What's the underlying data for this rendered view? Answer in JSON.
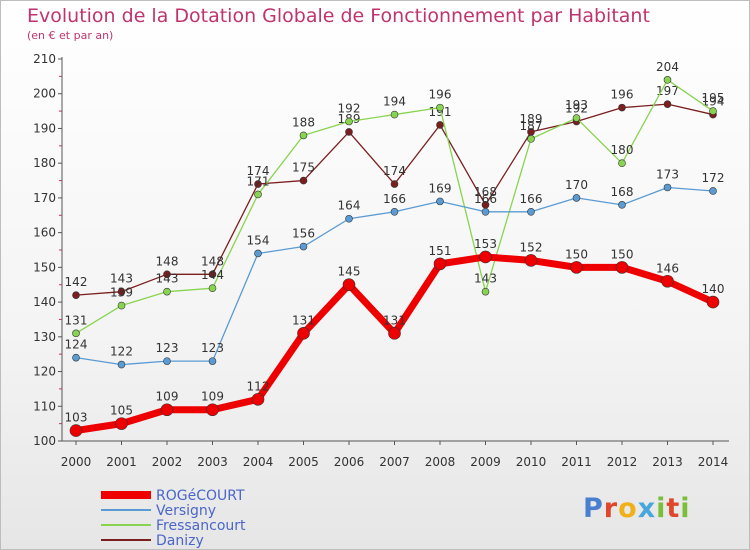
{
  "title": "Evolution de la Dotation Globale de Fonctionnement par Habitant",
  "subtitle": "(en € et par an)",
  "brand": "Proxiti",
  "chart_data": {
    "type": "line",
    "x": [
      "2000",
      "2001",
      "2002",
      "2003",
      "2004",
      "2005",
      "2006",
      "2007",
      "2008",
      "2009",
      "2010",
      "2011",
      "2012",
      "2013",
      "2014"
    ],
    "ylim": [
      100,
      210
    ],
    "yticks": [
      100,
      110,
      120,
      130,
      140,
      150,
      160,
      170,
      180,
      190,
      200,
      210
    ],
    "grid": false,
    "series": [
      {
        "name": "Danizy",
        "color": "#7a1e1e",
        "values": [
          142,
          143,
          148,
          148,
          174,
          175,
          189,
          174,
          191,
          168,
          189,
          192,
          196,
          197,
          194
        ]
      },
      {
        "name": "Fressancourt",
        "color": "#88d450",
        "values": [
          131,
          139,
          143,
          144,
          171,
          188,
          192,
          194,
          196,
          143,
          187,
          193,
          180,
          204,
          195
        ]
      },
      {
        "name": "Versigny",
        "color": "#5a9bd3",
        "values": [
          124,
          122,
          123,
          123,
          154,
          156,
          164,
          166,
          169,
          166,
          166,
          170,
          168,
          173,
          172
        ]
      },
      {
        "name": "ROGéCOURT",
        "color": "#ee0000",
        "values": [
          103,
          105,
          109,
          109,
          112,
          131,
          145,
          131,
          151,
          153,
          152,
          150,
          150,
          146,
          140
        ]
      }
    ],
    "legend_order": [
      "ROGéCOURT",
      "Versigny",
      "Fressancourt",
      "Danizy"
    ]
  }
}
